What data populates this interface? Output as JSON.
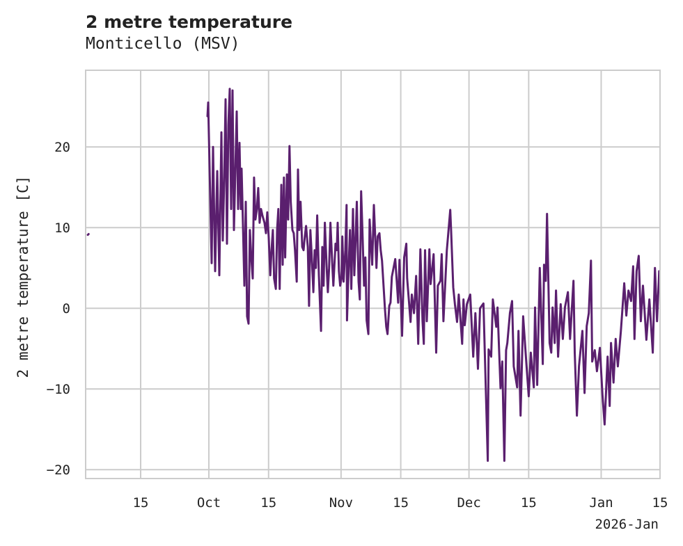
{
  "title": "2 metre temperature",
  "subtitle": "Monticello (MSV)",
  "chart_data": {
    "type": "line",
    "title": "2 metre temperature",
    "subtitle": "Monticello (MSV)",
    "xlabel": "",
    "ylabel": "2 metre temperature [C]",
    "x_units": "days since 2025-10-01",
    "xlim": [
      -28.9,
      105.8
    ],
    "ylim": [
      -21.1,
      29.5
    ],
    "grid": true,
    "line_color": "#5a1f6e",
    "x_ticks": [
      {
        "day": -16,
        "label": "15"
      },
      {
        "day": 0,
        "label": "Oct"
      },
      {
        "day": 14,
        "label": "15"
      },
      {
        "day": 31,
        "label": "Nov"
      },
      {
        "day": 45,
        "label": "15"
      },
      {
        "day": 61,
        "label": "Dec"
      },
      {
        "day": 75,
        "label": "15"
      },
      {
        "day": 92,
        "label": "Jan"
      },
      {
        "day": 106,
        "label": "15"
      }
    ],
    "x_offset_label": "2026-Jan",
    "y_ticks": [
      {
        "value": 20,
        "label": "20"
      },
      {
        "value": 10,
        "label": "10"
      },
      {
        "value": 0,
        "label": "0"
      },
      {
        "value": -10,
        "label": "−10"
      },
      {
        "value": -20,
        "label": "−20"
      }
    ],
    "series": [
      {
        "name": "isolated",
        "points": [
          [
            -28.4,
            9.1
          ],
          [
            -28.2,
            9.2
          ]
        ]
      },
      {
        "name": "2 metre temperature",
        "points": [
          [
            -0.33,
            23.8
          ],
          [
            -0.16,
            25.5
          ],
          [
            0.65,
            5.6
          ],
          [
            0.98,
            20
          ],
          [
            1.47,
            4.6
          ],
          [
            1.96,
            17
          ],
          [
            2.45,
            4.1
          ],
          [
            2.94,
            21.8
          ],
          [
            3.26,
            8.4
          ],
          [
            3.59,
            15.8
          ],
          [
            3.92,
            25.9
          ],
          [
            4.24,
            8
          ],
          [
            4.57,
            22.7
          ],
          [
            4.89,
            27.2
          ],
          [
            5.22,
            12.3
          ],
          [
            5.55,
            27
          ],
          [
            5.87,
            9.7
          ],
          [
            6.2,
            17
          ],
          [
            6.53,
            24.4
          ],
          [
            6.85,
            12.3
          ],
          [
            7.18,
            20.5
          ],
          [
            7.5,
            12.3
          ],
          [
            7.67,
            17.3
          ],
          [
            7.99,
            10.6
          ],
          [
            8.32,
            2.8
          ],
          [
            8.65,
            13.2
          ],
          [
            8.97,
            -1
          ],
          [
            9.3,
            -1.9
          ],
          [
            9.62,
            9.7
          ],
          [
            9.95,
            6.3
          ],
          [
            10.28,
            3.7
          ],
          [
            10.6,
            16.2
          ],
          [
            10.93,
            11
          ],
          [
            11.26,
            12.3
          ],
          [
            11.58,
            14.9
          ],
          [
            11.91,
            10.6
          ],
          [
            12.23,
            12.3
          ],
          [
            12.56,
            11.5
          ],
          [
            13.05,
            10.6
          ],
          [
            13.38,
            9.3
          ],
          [
            13.7,
            11.9
          ],
          [
            14.03,
            8.9
          ],
          [
            14.4,
            4.1
          ],
          [
            14.7,
            7.2
          ],
          [
            15.0,
            9.7
          ],
          [
            15.3,
            3.7
          ],
          [
            15.7,
            2.4
          ],
          [
            16.0,
            9.7
          ],
          [
            16.3,
            12.3
          ],
          [
            16.6,
            2.4
          ],
          [
            17.0,
            15.3
          ],
          [
            17.3,
            5.4
          ],
          [
            17.6,
            16.2
          ],
          [
            17.9,
            6.3
          ],
          [
            18.3,
            16.6
          ],
          [
            18.6,
            11.0
          ],
          [
            18.9,
            20.1
          ],
          [
            19.2,
            13.2
          ],
          [
            19.6,
            9.7
          ],
          [
            19.9,
            9.3
          ],
          [
            20.2,
            7.2
          ],
          [
            20.6,
            3.3
          ],
          [
            20.9,
            17.2
          ],
          [
            21.2,
            9.7
          ],
          [
            21.5,
            13.2
          ],
          [
            21.9,
            7.6
          ],
          [
            22.2,
            7.2
          ],
          [
            22.5,
            8.9
          ],
          [
            22.8,
            10.2
          ],
          [
            23.2,
            7.6
          ],
          [
            23.5,
            0.3
          ],
          [
            23.8,
            9.7
          ],
          [
            24.1,
            6.7
          ],
          [
            24.5,
            2.0
          ],
          [
            24.8,
            7.2
          ],
          [
            25.1,
            5.0
          ],
          [
            25.4,
            11.5
          ],
          [
            25.8,
            4.1
          ],
          [
            26.3,
            -2.8
          ],
          [
            26.6,
            7.6
          ],
          [
            26.9,
            2.8
          ],
          [
            27.2,
            10.6
          ],
          [
            27.6,
            5.4
          ],
          [
            27.9,
            2.0
          ],
          [
            28.2,
            5.0
          ],
          [
            28.5,
            10.6
          ],
          [
            28.9,
            5.9
          ],
          [
            29.2,
            2.8
          ],
          [
            29.7,
            8.0
          ],
          [
            30.0,
            7.2
          ],
          [
            30.2,
            10.6
          ],
          [
            30.5,
            4.6
          ],
          [
            30.8,
            2.8
          ],
          [
            31.1,
            3.7
          ],
          [
            31.3,
            8.9
          ],
          [
            31.6,
            3.3
          ],
          [
            32.0,
            7.2
          ],
          [
            32.3,
            12.8
          ],
          [
            32.4,
            -1.5
          ],
          [
            32.8,
            5.4
          ],
          [
            33.1,
            9.7
          ],
          [
            33.4,
            2.4
          ],
          [
            33.8,
            12.3
          ],
          [
            34.1,
            4.1
          ],
          [
            34.4,
            8.4
          ],
          [
            34.7,
            13.2
          ],
          [
            35.1,
            3.3
          ],
          [
            35.4,
            1.1
          ],
          [
            35.7,
            14.5
          ],
          [
            36.0,
            9.7
          ],
          [
            36.4,
            2.8
          ],
          [
            36.7,
            6.3
          ],
          [
            37.0,
            -1.5
          ],
          [
            37.4,
            -3.2
          ],
          [
            37.7,
            11.0
          ],
          [
            38.0,
            8.0
          ],
          [
            38.3,
            5.4
          ],
          [
            38.7,
            12.8
          ],
          [
            39.0,
            8.9
          ],
          [
            39.3,
            5.0
          ],
          [
            39.6,
            8.9
          ],
          [
            40.0,
            9.3
          ],
          [
            40.3,
            7.2
          ],
          [
            40.6,
            5.9
          ],
          [
            41.3,
            -0.2
          ],
          [
            41.6,
            -2.3
          ],
          [
            41.9,
            -3.2
          ],
          [
            42.3,
            0.3
          ],
          [
            42.6,
            0.7
          ],
          [
            42.9,
            3.9
          ],
          [
            43.7,
            6.1
          ],
          [
            44.4,
            0.7
          ],
          [
            44.7,
            6.0
          ],
          [
            45.3,
            -3.4
          ],
          [
            45.8,
            6.3
          ],
          [
            46.3,
            8.0
          ],
          [
            46.5,
            3.7
          ],
          [
            47.3,
            -1.7
          ],
          [
            47.6,
            1.7
          ],
          [
            48.1,
            -0.6
          ],
          [
            48.6,
            4.0
          ],
          [
            49.1,
            -4.4
          ],
          [
            49.6,
            7.3
          ],
          [
            50.1,
            -1.6
          ],
          [
            50.4,
            -4.4
          ],
          [
            50.7,
            7.2
          ],
          [
            51.1,
            -1.6
          ],
          [
            51.7,
            7.3
          ],
          [
            52.0,
            3.0
          ],
          [
            52.7,
            6.7
          ],
          [
            53.3,
            -5.5
          ],
          [
            53.7,
            2.8
          ],
          [
            54.3,
            3.4
          ],
          [
            54.6,
            6.7
          ],
          [
            55.0,
            -1.6
          ],
          [
            55.8,
            7.2
          ],
          [
            56.6,
            12.2
          ],
          [
            56.8,
            9.7
          ],
          [
            57.3,
            2.6
          ],
          [
            57.7,
            0.5
          ],
          [
            58.2,
            -1.7
          ],
          [
            58.6,
            1.7
          ],
          [
            59.4,
            -4.4
          ],
          [
            59.7,
            1.1
          ],
          [
            60.0,
            -2.1
          ],
          [
            60.5,
            0.5
          ],
          [
            61.3,
            1.7
          ],
          [
            62.0,
            -6.0
          ],
          [
            62.5,
            -0.6
          ],
          [
            63.1,
            -7.5
          ],
          [
            63.6,
            0.0
          ],
          [
            64.4,
            0.6
          ],
          [
            65.4,
            -18.9
          ],
          [
            65.6,
            -5.1
          ],
          [
            66.2,
            -6.0
          ],
          [
            66.6,
            1.1
          ],
          [
            67.4,
            -2.3
          ],
          [
            67.7,
            0.1
          ],
          [
            68.4,
            -9.9
          ],
          [
            68.8,
            -6.6
          ],
          [
            69.3,
            -18.9
          ],
          [
            69.7,
            -5.2
          ],
          [
            70.0,
            -4.3
          ],
          [
            70.6,
            -0.6
          ],
          [
            71.1,
            0.9
          ],
          [
            71.5,
            -7.2
          ],
          [
            72.3,
            -9.8
          ],
          [
            72.6,
            -2.8
          ],
          [
            73.1,
            -13.3
          ],
          [
            73.7,
            -1.0
          ],
          [
            74.5,
            -7.2
          ],
          [
            75.0,
            -10.9
          ],
          [
            75.5,
            -5.5
          ],
          [
            76.2,
            -9.8
          ],
          [
            76.5,
            0.1
          ],
          [
            77.0,
            -9.5
          ],
          [
            77.6,
            5.0
          ],
          [
            78.3,
            -6.9
          ],
          [
            78.6,
            5.4
          ],
          [
            79.0,
            3.4
          ],
          [
            79.3,
            11.7
          ],
          [
            79.9,
            -4.3
          ],
          [
            80.3,
            -5.5
          ],
          [
            80.6,
            0.1
          ],
          [
            81.1,
            -4.3
          ],
          [
            81.4,
            2.2
          ],
          [
            81.9,
            -6.0
          ],
          [
            82.5,
            0.5
          ],
          [
            83.0,
            -3.8
          ],
          [
            83.5,
            0.1
          ],
          [
            84.2,
            2.0
          ],
          [
            84.7,
            -3.8
          ],
          [
            85.5,
            3.4
          ],
          [
            85.8,
            -5.5
          ],
          [
            86.3,
            -13.3
          ],
          [
            86.8,
            -7.2
          ],
          [
            87.6,
            -2.8
          ],
          [
            88.1,
            -10.5
          ],
          [
            88.6,
            -2.2
          ],
          [
            89.1,
            -0.6
          ],
          [
            89.6,
            5.9
          ],
          [
            89.9,
            -6.6
          ],
          [
            90.5,
            -5.2
          ],
          [
            91.0,
            -7.8
          ],
          [
            91.7,
            -4.9
          ],
          [
            92.3,
            -10.7
          ],
          [
            92.8,
            -14.4
          ],
          [
            93.5,
            -6.0
          ],
          [
            94.0,
            -12.1
          ],
          [
            94.3,
            -4.3
          ],
          [
            94.9,
            -9.2
          ],
          [
            95.4,
            -3.8
          ],
          [
            95.9,
            -7.2
          ],
          [
            96.6,
            -2.9
          ],
          [
            97.4,
            3.1
          ],
          [
            97.9,
            -0.9
          ],
          [
            98.4,
            2.2
          ],
          [
            99.0,
            0.9
          ],
          [
            99.5,
            5.2
          ],
          [
            99.8,
            -3.8
          ],
          [
            100.3,
            4.6
          ],
          [
            100.8,
            6.5
          ],
          [
            101.3,
            -1.6
          ],
          [
            101.8,
            2.8
          ],
          [
            102.6,
            -3.9
          ],
          [
            103.3,
            1.1
          ],
          [
            104.1,
            -5.5
          ],
          [
            104.6,
            5.0
          ],
          [
            105.1,
            -1.6
          ],
          [
            105.6,
            4.6
          ]
        ]
      }
    ]
  }
}
